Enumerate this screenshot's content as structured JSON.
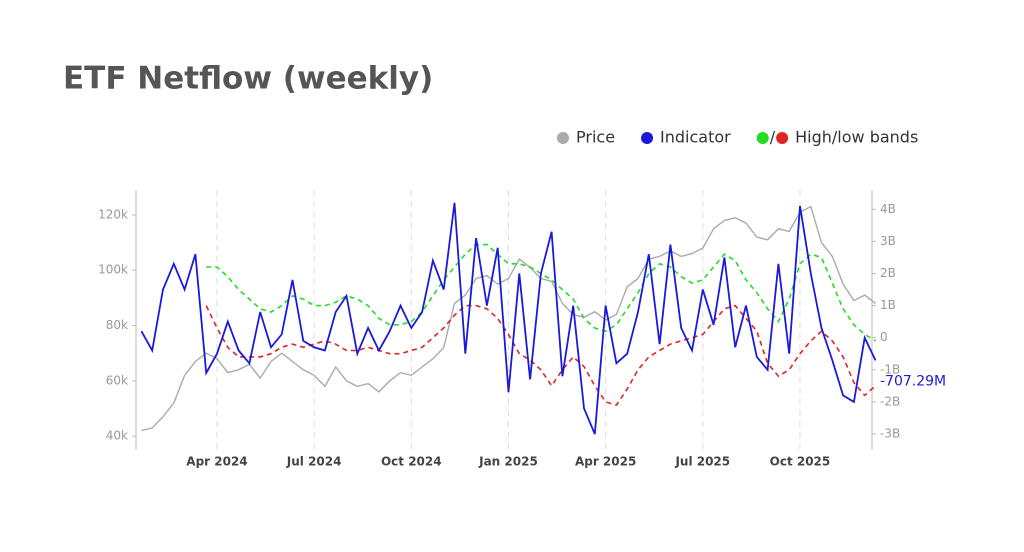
{
  "chart_data": {
    "type": "line",
    "title": "ETF Netflow (weekly)",
    "categories": [
      null,
      null,
      null,
      null,
      null,
      null,
      null,
      "Apr 2024",
      null,
      null,
      null,
      null,
      null,
      null,
      null,
      null,
      "Jul 2024",
      null,
      null,
      null,
      null,
      null,
      null,
      null,
      null,
      "Oct 2024",
      null,
      null,
      null,
      null,
      null,
      null,
      null,
      null,
      "Jan 2025",
      null,
      null,
      null,
      null,
      null,
      null,
      null,
      null,
      "Apr 2025",
      null,
      null,
      null,
      null,
      null,
      null,
      null,
      null,
      "Jul 2025",
      null,
      null,
      null,
      null,
      null,
      null,
      null,
      null,
      "Oct 2025",
      null,
      null,
      null,
      null,
      null,
      null,
      null
    ],
    "series": [
      {
        "name": "Price",
        "color": "#aaaaaa",
        "values": [
          42000,
          43000,
          47000,
          52000,
          62000,
          67000,
          70000,
          68000,
          63000,
          64000,
          66000,
          61000,
          67000,
          70000,
          67000,
          64000,
          62000,
          58000,
          65000,
          60000,
          58000,
          59000,
          56000,
          60000,
          63000,
          62000,
          65000,
          68000,
          72000,
          88000,
          91000,
          97000,
          98000,
          95000,
          97000,
          104000,
          101000,
          97000,
          96000,
          88000,
          84000,
          83000,
          85000,
          82000,
          84000,
          94000,
          97000,
          104000,
          105000,
          107000,
          105000,
          106000,
          108000,
          115000,
          118000,
          119000,
          117000,
          112000,
          111000,
          115000,
          114000,
          121000,
          123000,
          110000,
          105000,
          95000,
          89000,
          91000,
          88000
        ]
      },
      {
        "name": "Indicator",
        "color": "#1a1adb",
        "axis": "y2",
        "values": [
          0.2,
          -0.4,
          1.5,
          2.3,
          1.5,
          2.6,
          -1.1,
          -0.5,
          0.5,
          -0.4,
          -0.8,
          0.8,
          -0.3,
          0.1,
          1.8,
          -0.1,
          -0.3,
          -0.4,
          0.8,
          1.3,
          -0.5,
          0.3,
          -0.4,
          0.2,
          1.0,
          0.3,
          0.8,
          2.4,
          1.5,
          4.2,
          -0.5,
          3.1,
          1.0,
          2.8,
          -1.7,
          2.0,
          -1.3,
          2.0,
          3.3,
          -1.2,
          1.0,
          -2.2,
          -3.0,
          1.0,
          -0.8,
          -0.5,
          0.8,
          2.6,
          -0.2,
          2.9,
          0.3,
          -0.4,
          1.5,
          0.4,
          2.5,
          -0.3,
          1.0,
          -0.6,
          -1.0,
          2.3,
          -0.5,
          4.1,
          2.0,
          0.3,
          -0.7,
          -1.8,
          -2.0,
          0.0,
          -0.70729
        ],
        "value_labels": [
          null,
          null,
          null,
          null,
          null,
          null,
          null,
          null,
          null,
          null,
          null,
          null,
          null,
          null,
          null,
          null,
          null,
          null,
          null,
          null,
          null,
          null,
          null,
          null,
          null,
          null,
          null,
          null,
          null,
          null,
          null,
          null,
          null,
          null,
          null,
          null,
          null,
          null,
          null,
          null,
          null,
          null,
          null,
          null,
          null,
          null,
          null,
          null,
          null,
          null,
          null,
          null,
          null,
          null,
          null,
          null,
          null,
          null,
          null,
          null,
          null,
          null,
          null,
          null,
          null,
          null,
          null,
          null,
          "-707.29M"
        ]
      }
    ],
    "bands": {
      "name": "High/low bands",
      "separator": "/",
      "axis": "y2",
      "high": {
        "color": "#22dd22",
        "values": [
          null,
          null,
          null,
          null,
          null,
          null,
          2.2,
          2.2,
          1.9,
          1.5,
          1.2,
          0.9,
          0.8,
          1.0,
          1.3,
          1.2,
          1.0,
          1.0,
          1.1,
          1.3,
          1.2,
          1.0,
          0.6,
          0.4,
          0.4,
          0.5,
          0.8,
          1.3,
          1.8,
          2.2,
          2.6,
          2.9,
          2.9,
          2.6,
          2.3,
          2.3,
          2.2,
          2.0,
          1.8,
          1.5,
          1.2,
          0.6,
          0.3,
          0.2,
          0.4,
          0.9,
          1.4,
          2.0,
          2.3,
          2.2,
          1.9,
          1.7,
          1.8,
          2.2,
          2.6,
          2.4,
          1.8,
          1.4,
          0.9,
          0.5,
          1.2,
          2.3,
          2.6,
          2.5,
          1.7,
          0.9,
          0.4,
          0.1,
          -0.1
        ]
      },
      "low": {
        "color": "#e02424",
        "values": [
          null,
          null,
          null,
          null,
          null,
          null,
          1.0,
          0.3,
          -0.3,
          -0.6,
          -0.6,
          -0.6,
          -0.5,
          -0.3,
          -0.2,
          -0.3,
          -0.2,
          -0.1,
          -0.2,
          -0.4,
          -0.4,
          -0.3,
          -0.4,
          -0.5,
          -0.5,
          -0.4,
          -0.3,
          0.0,
          0.3,
          0.7,
          1.0,
          1.0,
          0.9,
          0.6,
          0.1,
          -0.5,
          -0.7,
          -1.0,
          -1.5,
          -1.0,
          -0.6,
          -0.9,
          -1.5,
          -2.0,
          -2.1,
          -1.6,
          -1.0,
          -0.6,
          -0.4,
          -0.2,
          -0.1,
          0.0,
          0.1,
          0.5,
          0.9,
          1.0,
          0.6,
          0.2,
          -0.8,
          -1.2,
          -1.0,
          -0.5,
          -0.1,
          0.2,
          -0.1,
          -0.6,
          -1.4,
          -1.8,
          -1.5
        ]
      }
    },
    "ylim": [
      35000,
      129000
    ],
    "yticks": [
      {
        "value": 40000,
        "label": "40k"
      },
      {
        "value": 60000,
        "label": "60k"
      },
      {
        "value": 80000,
        "label": "80k"
      },
      {
        "value": 100000,
        "label": "100k"
      },
      {
        "value": 120000,
        "label": "120k"
      }
    ],
    "y2lim": [
      -3.5,
      4.6
    ],
    "y2ticks": [
      {
        "value": -3,
        "label": "-3B"
      },
      {
        "value": -2,
        "label": "-2B"
      },
      {
        "value": -1,
        "label": "-1B"
      },
      0,
      {
        "value": 1,
        "label": "1B"
      },
      {
        "value": 2,
        "label": "2B"
      },
      {
        "value": 3,
        "label": "3B"
      },
      {
        "value": 4,
        "label": "4B"
      }
    ],
    "xgrid": true
  }
}
